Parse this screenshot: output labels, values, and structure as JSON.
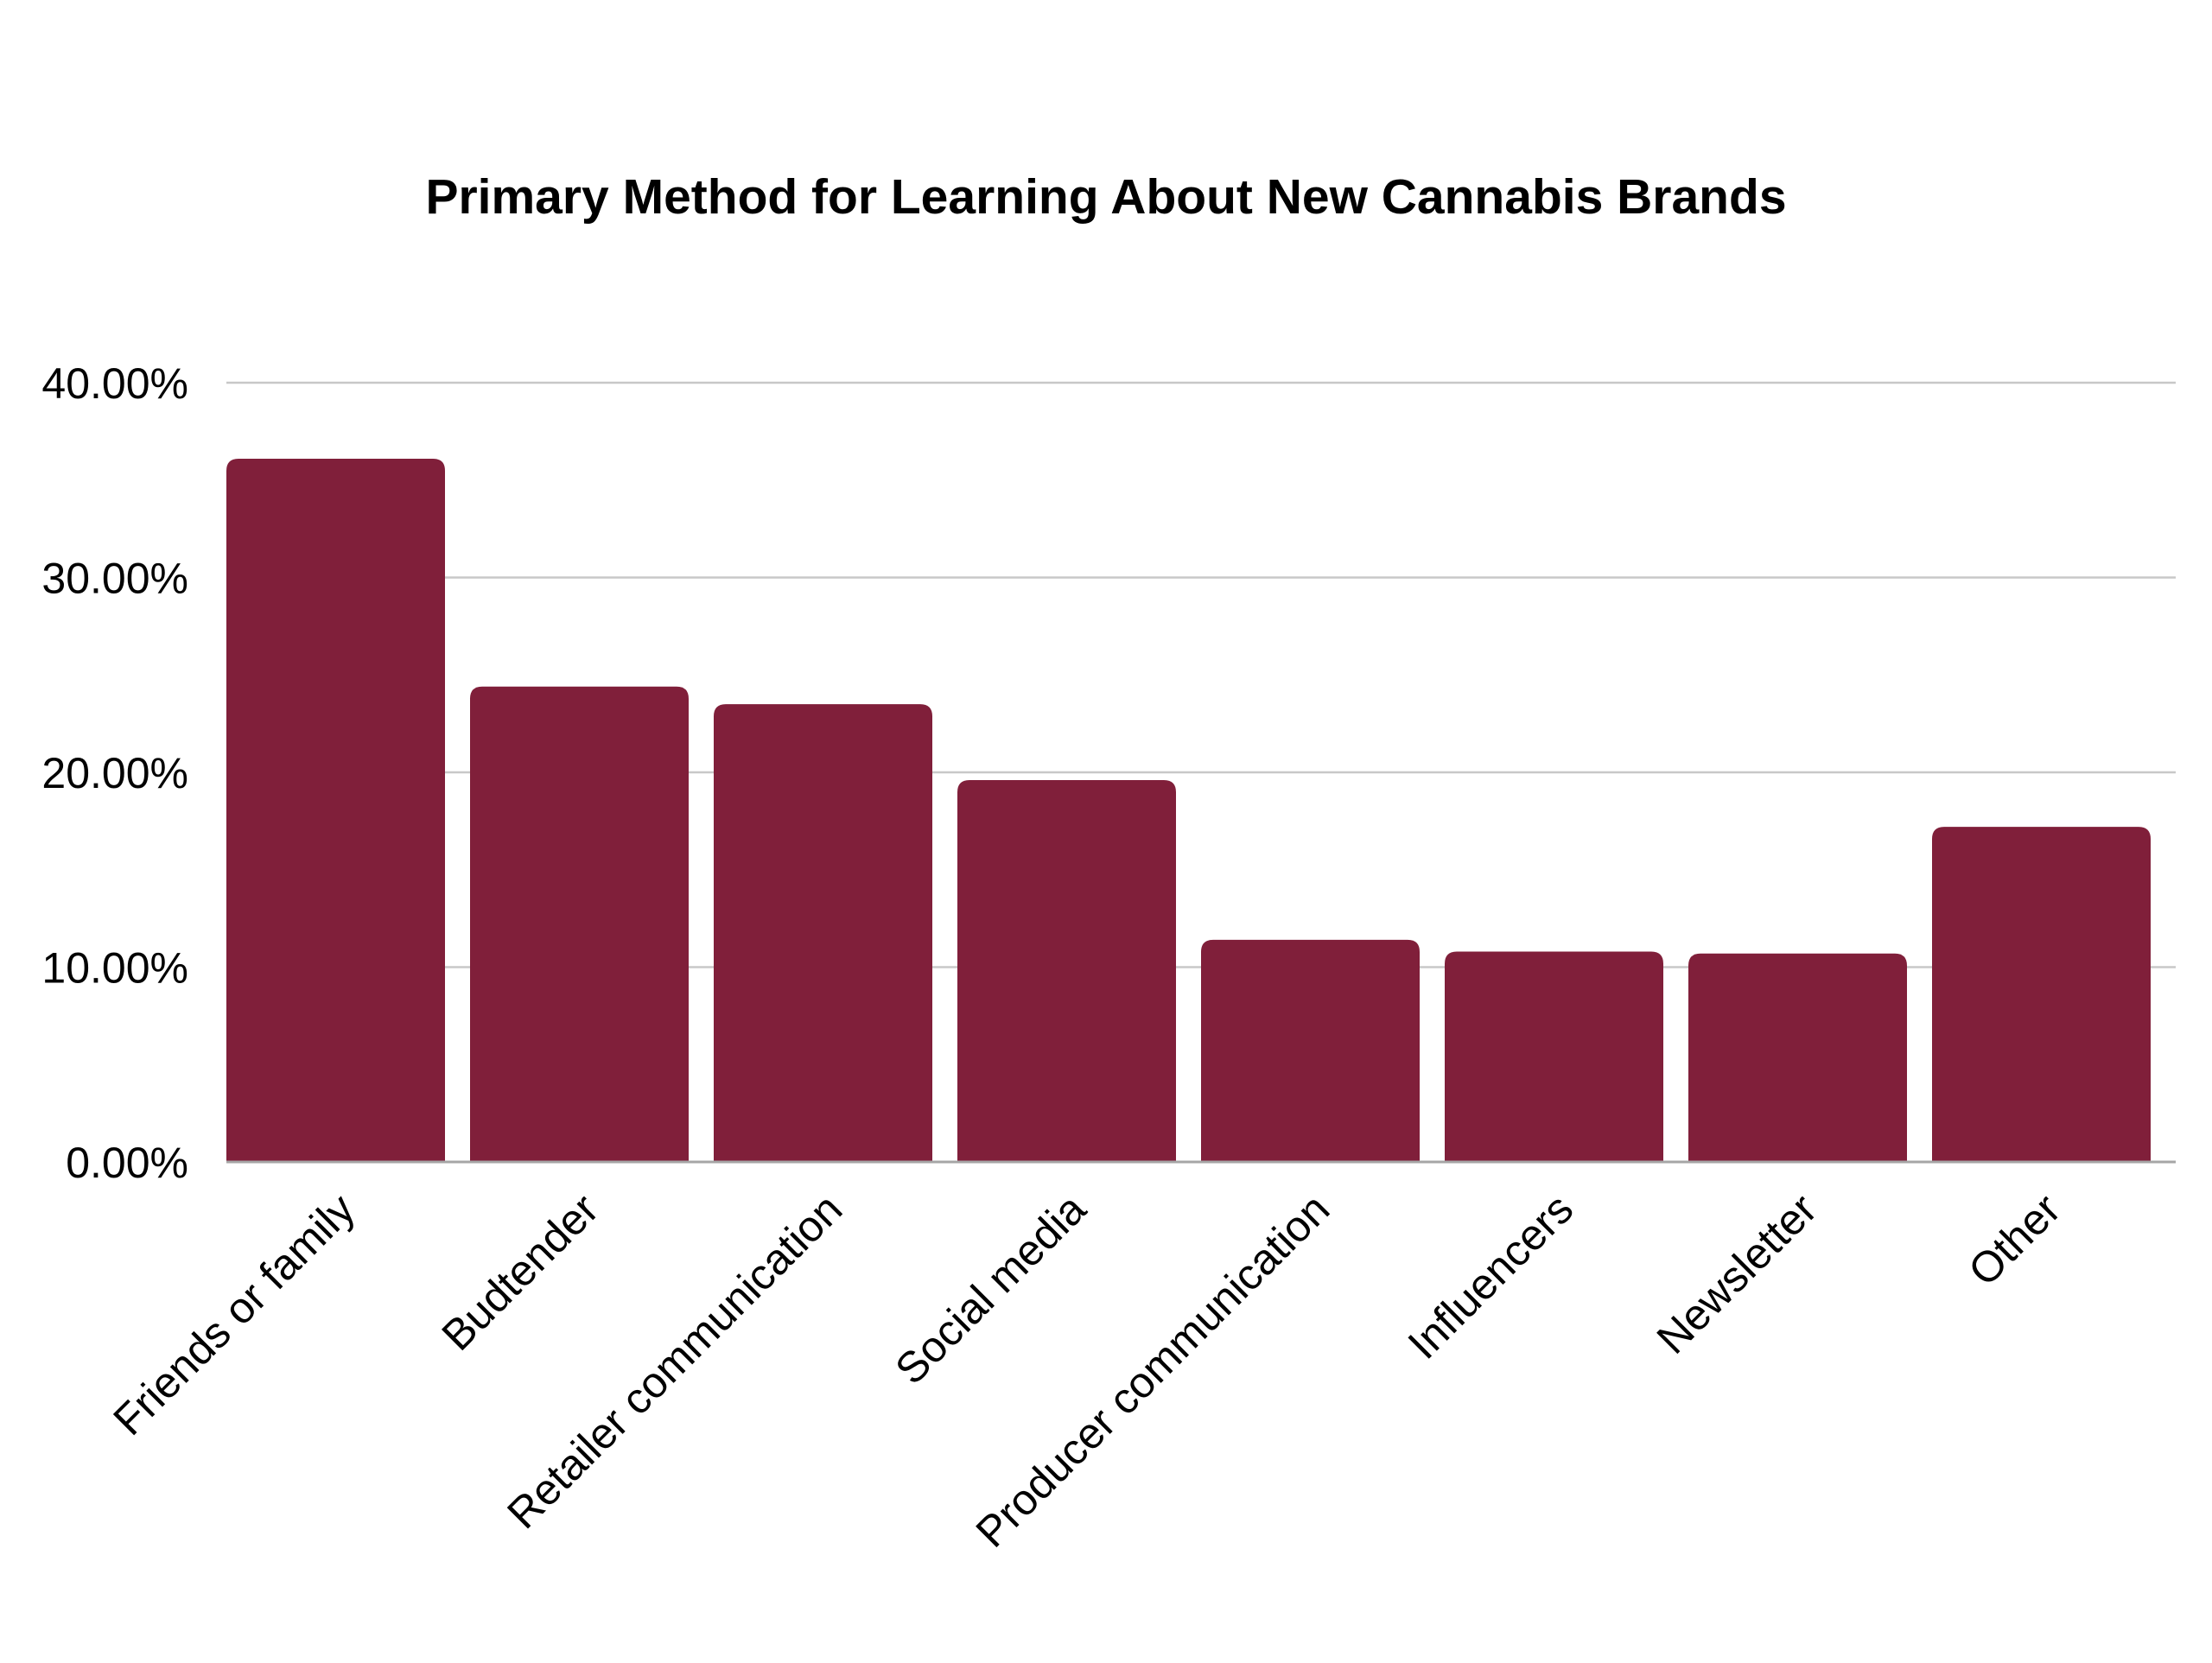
{
  "chart_data": {
    "type": "bar",
    "title": "Primary Method for Learning About New Cannabis Brands",
    "xlabel": "",
    "ylabel": "",
    "categories": [
      "Friends or family",
      "Budtender",
      "Retailer communication",
      "Social media",
      "Producer communication",
      "Influencers",
      "Newsletter",
      "Other"
    ],
    "values": [
      36.1,
      24.4,
      23.5,
      19.6,
      11.4,
      10.8,
      10.7,
      17.2
    ],
    "value_format": "percent_2dp",
    "ylim": [
      0,
      40
    ],
    "yticks": [
      0,
      10,
      20,
      30,
      40
    ],
    "ytick_labels": [
      "0.00%",
      "10.00%",
      "20.00%",
      "30.00%",
      "40.00%"
    ],
    "grid": true,
    "legend": "none",
    "bar_color": "#801F3A",
    "gridline_color": "#C8C8C8",
    "axis_color": "#A6A6A6"
  }
}
